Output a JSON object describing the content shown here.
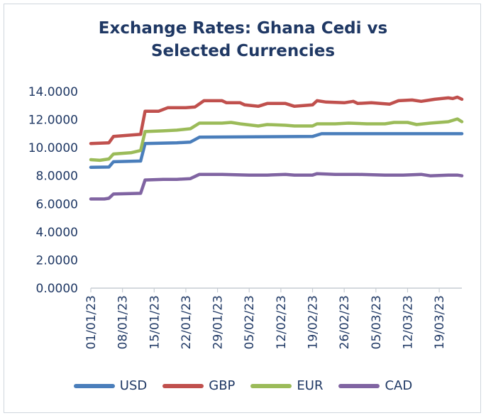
{
  "chart_data": {
    "type": "line",
    "title_lines": [
      "Exchange Rates: Ghana Cedi vs",
      "Selected Currencies"
    ],
    "xlabel": "",
    "ylabel": "",
    "ylim": [
      0,
      14
    ],
    "yticks": [
      "0.0000",
      "2.0000",
      "4.0000",
      "6.0000",
      "8.0000",
      "10.0000",
      "12.0000",
      "14.0000"
    ],
    "xtick_labels": [
      "01/01/23",
      "08/01/23",
      "15/01/23",
      "22/01/23",
      "29/01/23",
      "05/02/23",
      "12/02/23",
      "19/02/23",
      "26/02/23",
      "05/03/23",
      "12/03/23",
      "19/03/23"
    ],
    "x_day_range": [
      1,
      83
    ],
    "grid": false,
    "legend_position": "bottom",
    "series": [
      {
        "name": "USD",
        "color": "#4a7ebb",
        "points": [
          [
            1,
            8.6
          ],
          [
            5,
            8.62
          ],
          [
            6,
            9.0
          ],
          [
            12,
            9.05
          ],
          [
            13,
            10.3
          ],
          [
            20,
            10.35
          ],
          [
            23,
            10.4
          ],
          [
            25,
            10.75
          ],
          [
            50,
            10.8
          ],
          [
            52,
            11.0
          ],
          [
            83,
            11.0
          ]
        ]
      },
      {
        "name": "GBP",
        "color": "#c0504d",
        "points": [
          [
            1,
            10.3
          ],
          [
            5,
            10.35
          ],
          [
            6,
            10.8
          ],
          [
            12,
            10.95
          ],
          [
            13,
            12.6
          ],
          [
            16,
            12.6
          ],
          [
            18,
            12.85
          ],
          [
            22,
            12.85
          ],
          [
            24,
            12.9
          ],
          [
            26,
            13.35
          ],
          [
            30,
            13.35
          ],
          [
            31,
            13.2
          ],
          [
            34,
            13.2
          ],
          [
            35,
            13.05
          ],
          [
            38,
            12.95
          ],
          [
            40,
            13.15
          ],
          [
            44,
            13.15
          ],
          [
            46,
            12.95
          ],
          [
            50,
            13.05
          ],
          [
            51,
            13.35
          ],
          [
            53,
            13.25
          ],
          [
            57,
            13.2
          ],
          [
            59,
            13.3
          ],
          [
            60,
            13.15
          ],
          [
            63,
            13.2
          ],
          [
            67,
            13.1
          ],
          [
            69,
            13.35
          ],
          [
            72,
            13.4
          ],
          [
            74,
            13.3
          ],
          [
            77,
            13.45
          ],
          [
            80,
            13.55
          ],
          [
            81,
            13.5
          ],
          [
            82,
            13.6
          ],
          [
            83,
            13.45
          ]
        ]
      },
      {
        "name": "EUR",
        "color": "#9bbb59",
        "points": [
          [
            1,
            9.15
          ],
          [
            3,
            9.1
          ],
          [
            5,
            9.2
          ],
          [
            6,
            9.55
          ],
          [
            10,
            9.65
          ],
          [
            12,
            9.8
          ],
          [
            13,
            11.15
          ],
          [
            17,
            11.2
          ],
          [
            20,
            11.25
          ],
          [
            23,
            11.35
          ],
          [
            25,
            11.75
          ],
          [
            30,
            11.75
          ],
          [
            32,
            11.8
          ],
          [
            34,
            11.7
          ],
          [
            38,
            11.55
          ],
          [
            40,
            11.65
          ],
          [
            44,
            11.6
          ],
          [
            46,
            11.55
          ],
          [
            50,
            11.55
          ],
          [
            51,
            11.7
          ],
          [
            55,
            11.7
          ],
          [
            58,
            11.75
          ],
          [
            62,
            11.7
          ],
          [
            66,
            11.7
          ],
          [
            68,
            11.8
          ],
          [
            71,
            11.8
          ],
          [
            73,
            11.65
          ],
          [
            76,
            11.75
          ],
          [
            80,
            11.85
          ],
          [
            82,
            12.05
          ],
          [
            83,
            11.85
          ]
        ]
      },
      {
        "name": "CAD",
        "color": "#8064a2",
        "points": [
          [
            1,
            6.35
          ],
          [
            4,
            6.35
          ],
          [
            5,
            6.4
          ],
          [
            6,
            6.7
          ],
          [
            12,
            6.75
          ],
          [
            13,
            7.7
          ],
          [
            17,
            7.75
          ],
          [
            20,
            7.75
          ],
          [
            23,
            7.8
          ],
          [
            25,
            8.1
          ],
          [
            30,
            8.1
          ],
          [
            36,
            8.05
          ],
          [
            40,
            8.05
          ],
          [
            44,
            8.1
          ],
          [
            46,
            8.05
          ],
          [
            50,
            8.05
          ],
          [
            51,
            8.15
          ],
          [
            55,
            8.1
          ],
          [
            60,
            8.1
          ],
          [
            66,
            8.05
          ],
          [
            70,
            8.05
          ],
          [
            74,
            8.1
          ],
          [
            76,
            8.0
          ],
          [
            80,
            8.05
          ],
          [
            82,
            8.05
          ],
          [
            83,
            8.0
          ]
        ]
      }
    ]
  }
}
